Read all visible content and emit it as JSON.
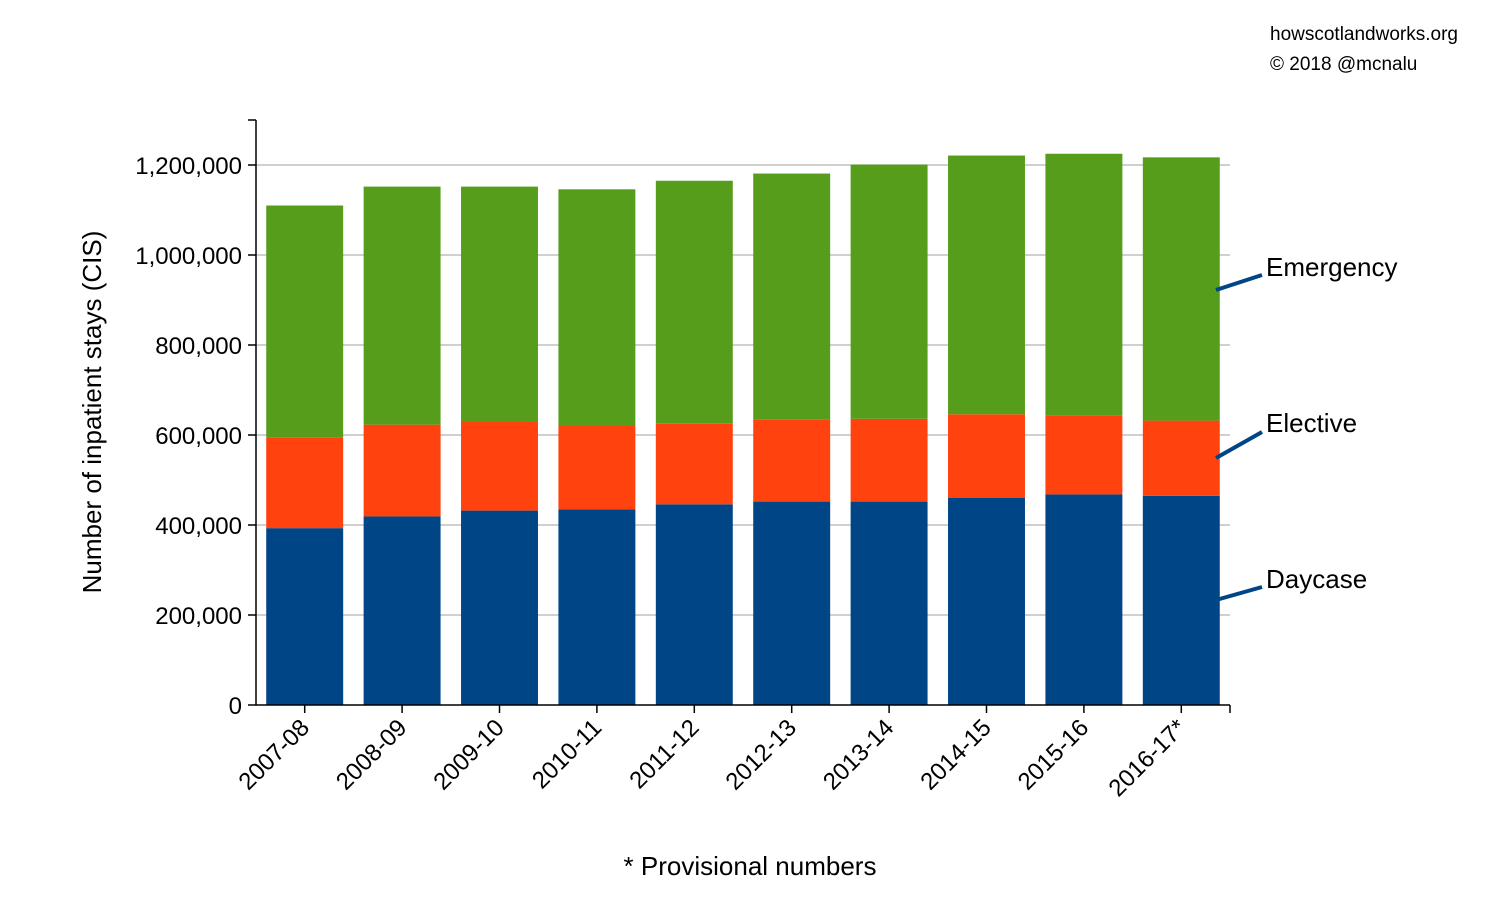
{
  "credits": {
    "site": "howscotlandworks.org",
    "copyright": "© 2018  @mcnalu"
  },
  "footnote": "* Provisional numbers",
  "chart_data": {
    "type": "bar",
    "stacked": true,
    "title": "",
    "xlabel": "",
    "ylabel": "Number of inpatient stays (CIS)",
    "ylim": [
      0,
      1300000
    ],
    "yticks": [
      0,
      200000,
      400000,
      600000,
      800000,
      1000000,
      1200000
    ],
    "ytick_labels": [
      "0",
      "200,000",
      "400,000",
      "600,000",
      "800,000",
      "1,000,000",
      "1,200,000"
    ],
    "grid": true,
    "legend": "direct labels right of plot",
    "categories": [
      "2007-08",
      "2008-09",
      "2009-10",
      "2010-11",
      "2011-12",
      "2012-13",
      "2013-14",
      "2014-15",
      "2015-16",
      "2016-17*"
    ],
    "series": [
      {
        "name": "Daycase",
        "color": "#004586",
        "values": [
          393000,
          419000,
          432000,
          435000,
          446000,
          452000,
          452000,
          460000,
          468000,
          465000
        ]
      },
      {
        "name": "Elective",
        "color": "#ff420e",
        "values": [
          202000,
          204000,
          199000,
          185000,
          179000,
          182000,
          184000,
          186000,
          175000,
          167000
        ]
      },
      {
        "name": "Emergency",
        "color": "#579d1c",
        "values": [
          515000,
          529000,
          521000,
          526000,
          540000,
          547000,
          565000,
          575000,
          582000,
          585000
        ]
      }
    ]
  }
}
